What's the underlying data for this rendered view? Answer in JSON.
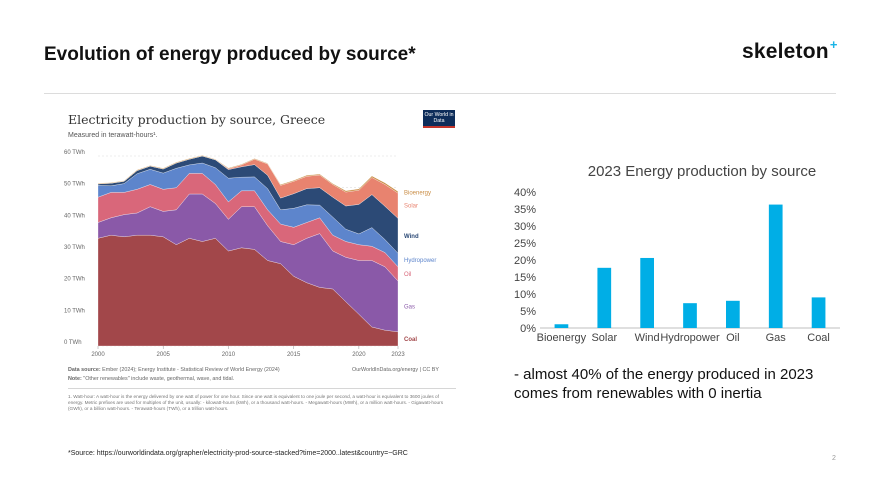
{
  "slide": {
    "title": "Evolution of energy produced by source*",
    "brand": "skeleton",
    "brand_mark": "+",
    "bullet": " - almost 40% of the energy produced in 2023 comes from renewables with 0 inertia",
    "source": "*Source: https://ourworldindata.org/grapher/electricity-prod-source-stacked?time=2000..latest&country=~GRC",
    "page_number": "2"
  },
  "chart_data": [
    {
      "type": "area",
      "title": "Electricity production by source, Greece",
      "subtitle": "Measured in terawatt-hours¹.",
      "logo_text": "Our World in Data",
      "unit": "TWh",
      "y_ticks": [
        "0 TWh",
        "10 TWh",
        "20 TWh",
        "30 TWh",
        "40 TWh",
        "50 TWh",
        "60 TWh"
      ],
      "x_ticks": [
        "2000",
        "2005",
        "2010",
        "2015",
        "2020",
        "2023"
      ],
      "ylim": [
        0,
        60
      ],
      "x": [
        2000,
        2001,
        2002,
        2003,
        2004,
        2005,
        2006,
        2007,
        2008,
        2009,
        2010,
        2011,
        2012,
        2013,
        2014,
        2015,
        2016,
        2017,
        2018,
        2019,
        2020,
        2021,
        2022,
        2023
      ],
      "series": [
        {
          "name": "Coal",
          "color": "#a2474a",
          "values": [
            34,
            35,
            34.5,
            35,
            35,
            34.5,
            32,
            34,
            33,
            34,
            30,
            31,
            30.5,
            27,
            26,
            22,
            20,
            18.5,
            18,
            14,
            10,
            6,
            5,
            4.5
          ]
        },
        {
          "name": "Gas",
          "color": "#8a59a8",
          "values": [
            5,
            5.5,
            7,
            7,
            9,
            8,
            11,
            14,
            15,
            11,
            10,
            13,
            13.5,
            11,
            7,
            10,
            14,
            17,
            12,
            14,
            17,
            21,
            20,
            16
          ]
        },
        {
          "name": "Oil",
          "color": "#d9677a",
          "values": [
            8,
            8,
            7,
            7.5,
            7,
            7,
            7,
            6.5,
            6.5,
            6,
            5.5,
            5,
            5,
            5,
            5.5,
            5.5,
            5,
            5,
            5,
            5,
            5,
            4.5,
            4.5,
            4.5
          ]
        },
        {
          "name": "Hydropower",
          "color": "#5d85cc",
          "values": [
            3.7,
            2.1,
            2.8,
            4.9,
            4.8,
            5.1,
            6.1,
            2.7,
            3.3,
            5.3,
            7.5,
            4.3,
            4.4,
            6.7,
            4.5,
            6,
            5.6,
            4,
            5.7,
            3.9,
            3.4,
            5.9,
            4.1,
            4.3
          ]
        },
        {
          "name": "Wind",
          "color": "#2c4a76",
          "values": [
            0.5,
            0.8,
            0.7,
            1,
            1,
            1.3,
            1.7,
            1.8,
            2.2,
            2.5,
            2.7,
            3.3,
            3.9,
            4.2,
            3.7,
            4.6,
            5.1,
            5.5,
            6.3,
            7.3,
            9.3,
            10.4,
            10.5,
            11
          ]
        },
        {
          "name": "Solar",
          "color": "#e8836f",
          "values": [
            0,
            0,
            0,
            0,
            0,
            0,
            0,
            0,
            0,
            0,
            0.3,
            0.6,
            1.7,
            3.6,
            4,
            3.9,
            3.9,
            4,
            4,
            4.4,
            4.5,
            5.4,
            6.9,
            8
          ]
        },
        {
          "name": "Bioenergy",
          "color": "#c98d45",
          "values": [
            0.2,
            0.2,
            0.2,
            0.2,
            0.2,
            0.2,
            0.2,
            0.2,
            0.2,
            0.2,
            0.2,
            0.2,
            0.2,
            0.2,
            0.3,
            0.3,
            0.3,
            0.3,
            0.3,
            0.4,
            0.4,
            0.5,
            0.5,
            0.5
          ]
        }
      ],
      "source_label": "Data source:",
      "source_text": "Ember (2024); Energy Institute - Statistical Review of World Energy (2024)",
      "note_label": "Note:",
      "note_text": "\"Other renewables\" include waste, geothermal, wave, and tidal.",
      "citation": "OurWorldInData.org/energy | CC BY",
      "footnote": "1. Watt-hour: A watt-hour is the energy delivered by one watt of power for one hour. Since one watt is equivalent to one joule per second, a watt-hour is equivalent to 3600 joules of energy. Metric prefixes are used for multiples of the unit, usually: - kilowatt-hours (kWh), or a thousand watt-hours. - Megawatt-hours (MWh), or a million watt-hours. - Gigawatt-hours (GWh), or a billion watt-hours. - Terawatt-hours (TWh), or a trillion watt-hours."
    },
    {
      "type": "bar",
      "title": "2023 Energy production by source",
      "categories": [
        "Bioenergy",
        "Solar",
        "Wind",
        "Hydropower",
        "Oil",
        "Gas",
        "Coal"
      ],
      "values": [
        1.1,
        17.7,
        20.6,
        7.3,
        8.0,
        36.3,
        9.0
      ],
      "y_ticks": [
        "0%",
        "5%",
        "10%",
        "15%",
        "20%",
        "25%",
        "30%",
        "35%",
        "40%"
      ],
      "ylim": [
        0,
        40
      ],
      "color": "#00aee6"
    }
  ]
}
